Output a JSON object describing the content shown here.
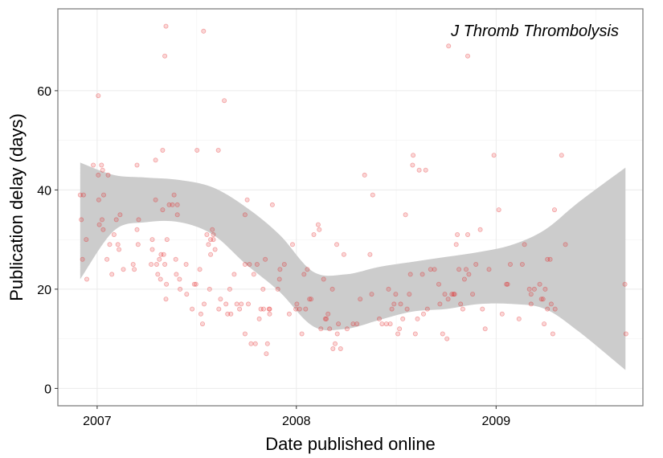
{
  "chart_data": {
    "type": "scatter",
    "title": "J Thromb Thrombolysis",
    "xlabel": "Date published online",
    "ylabel": "Publication delay (days)",
    "x_ticks": [
      "2007",
      "2008",
      "2009"
    ],
    "y_ticks": [
      0,
      20,
      40,
      60
    ],
    "xlim": [
      "2006-10-21",
      "2009-09-27"
    ],
    "ylim": [
      -3.5,
      76.5
    ],
    "grid": true,
    "legend": "none",
    "point_color": "#e31a1c",
    "band_color": "#cccccc",
    "trend": {
      "x": [
        "2006-12-01",
        "2007-02-01",
        "2007-04-01",
        "2007-06-01",
        "2007-08-01",
        "2007-10-01",
        "2007-12-01",
        "2008-02-01",
        "2008-04-01",
        "2008-06-01",
        "2008-08-01",
        "2008-10-01",
        "2008-12-01",
        "2009-02-01",
        "2009-04-01",
        "2009-06-01",
        "2009-08-26"
      ],
      "y": [
        33.8,
        37.8,
        38.0,
        37.4,
        35.3,
        30.0,
        24.6,
        17.8,
        17.6,
        18.5,
        19.7,
        20.5,
        21.1,
        20.8,
        21.6,
        22.9,
        24.1
      ],
      "lower": [
        22.0,
        31.8,
        33.5,
        33.5,
        31.0,
        25.0,
        19.5,
        12.5,
        12.0,
        13.8,
        15.5,
        16.0,
        17.0,
        17.0,
        16.0,
        11.5,
        3.7
      ],
      "upper": [
        45.5,
        43.0,
        42.5,
        42.0,
        40.5,
        36.5,
        31.0,
        23.5,
        23.0,
        24.5,
        25.5,
        26.5,
        27.5,
        29.0,
        32.0,
        37.5,
        44.5
      ]
    },
    "points": [
      [
        "2006-12-01",
        39
      ],
      [
        "2006-12-03",
        34
      ],
      [
        "2006-12-05",
        26
      ],
      [
        "2006-12-07",
        39
      ],
      [
        "2006-12-12",
        30
      ],
      [
        "2006-12-13",
        22
      ],
      [
        "2006-12-25",
        45
      ],
      [
        "2007-01-03",
        59
      ],
      [
        "2007-01-03",
        43
      ],
      [
        "2007-01-04",
        38
      ],
      [
        "2007-01-05",
        33
      ],
      [
        "2007-01-09",
        45
      ],
      [
        "2007-01-11",
        44
      ],
      [
        "2007-01-13",
        39
      ],
      [
        "2007-01-10",
        34
      ],
      [
        "2007-01-12",
        32
      ],
      [
        "2007-01-19",
        26
      ],
      [
        "2007-01-21",
        43
      ],
      [
        "2007-01-24",
        29
      ],
      [
        "2007-01-28",
        23
      ],
      [
        "2007-02-01",
        31
      ],
      [
        "2007-02-05",
        34
      ],
      [
        "2007-02-08",
        29
      ],
      [
        "2007-02-12",
        35
      ],
      [
        "2007-02-10",
        28
      ],
      [
        "2007-02-18",
        24
      ],
      [
        "2007-03-08",
        25
      ],
      [
        "2007-03-10",
        24
      ],
      [
        "2007-03-15",
        45
      ],
      [
        "2007-03-15",
        32
      ],
      [
        "2007-03-18",
        34
      ],
      [
        "2007-03-17",
        29
      ],
      [
        "2007-04-10",
        25
      ],
      [
        "2007-04-12",
        30
      ],
      [
        "2007-04-12",
        28
      ],
      [
        "2007-04-18",
        38
      ],
      [
        "2007-04-18",
        46
      ],
      [
        "2007-04-20",
        25
      ],
      [
        "2007-04-22",
        23
      ],
      [
        "2007-04-25",
        26
      ],
      [
        "2007-04-27",
        22
      ],
      [
        "2007-04-28",
        27
      ],
      [
        "2007-05-01",
        36
      ],
      [
        "2007-05-01",
        48
      ],
      [
        "2007-05-03",
        27
      ],
      [
        "2007-05-05",
        25
      ],
      [
        "2007-05-08",
        21
      ],
      [
        "2007-05-07",
        18
      ],
      [
        "2007-05-05",
        67
      ],
      [
        "2007-05-07",
        73
      ],
      [
        "2007-05-09",
        30
      ],
      [
        "2007-05-13",
        37
      ],
      [
        "2007-05-19",
        37
      ],
      [
        "2007-05-22",
        39
      ],
      [
        "2007-05-25",
        26
      ],
      [
        "2007-05-28",
        35
      ],
      [
        "2007-05-28",
        37
      ],
      [
        "2007-05-26",
        23
      ],
      [
        "2007-06-01",
        22
      ],
      [
        "2007-06-02",
        20
      ],
      [
        "2007-06-13",
        25
      ],
      [
        "2007-06-14",
        19
      ],
      [
        "2007-06-24",
        16
      ],
      [
        "2007-06-28",
        21
      ],
      [
        "2007-07-01",
        21
      ],
      [
        "2007-07-03",
        48
      ],
      [
        "2007-07-08",
        24
      ],
      [
        "2007-07-10",
        15
      ],
      [
        "2007-07-13",
        13
      ],
      [
        "2007-07-15",
        72
      ],
      [
        "2007-07-16",
        17
      ],
      [
        "2007-07-21",
        31
      ],
      [
        "2007-07-24",
        29
      ],
      [
        "2007-07-26",
        20
      ],
      [
        "2007-07-28",
        27
      ],
      [
        "2007-07-28",
        30
      ],
      [
        "2007-07-31",
        32
      ],
      [
        "2007-08-02",
        30
      ],
      [
        "2007-08-02",
        31
      ],
      [
        "2007-08-05",
        28
      ],
      [
        "2007-08-11",
        48
      ],
      [
        "2007-08-12",
        16
      ],
      [
        "2007-08-15",
        18
      ],
      [
        "2007-08-22",
        58
      ],
      [
        "2007-08-25",
        17
      ],
      [
        "2007-08-28",
        15
      ],
      [
        "2007-09-01",
        20
      ],
      [
        "2007-09-03",
        15
      ],
      [
        "2007-09-09",
        23
      ],
      [
        "2007-09-14",
        17
      ],
      [
        "2007-09-19",
        16
      ],
      [
        "2007-09-22",
        17
      ],
      [
        "2007-09-29",
        25
      ],
      [
        "2007-09-29",
        11
      ],
      [
        "2007-09-29",
        35
      ],
      [
        "2007-10-03",
        38
      ],
      [
        "2007-10-05",
        17
      ],
      [
        "2007-10-07",
        25
      ],
      [
        "2007-10-10",
        9
      ],
      [
        "2007-10-15",
        23
      ],
      [
        "2007-10-18",
        9
      ],
      [
        "2007-10-21",
        25
      ],
      [
        "2007-10-25",
        14
      ],
      [
        "2007-10-28",
        16
      ],
      [
        "2007-11-01",
        20
      ],
      [
        "2007-11-02",
        16
      ],
      [
        "2007-11-05",
        26
      ],
      [
        "2007-11-07",
        7
      ],
      [
        "2007-11-09",
        9
      ],
      [
        "2007-11-12",
        16
      ],
      [
        "2007-11-13",
        16
      ],
      [
        "2007-11-13",
        15
      ],
      [
        "2007-11-18",
        37
      ],
      [
        "2007-11-28",
        20
      ],
      [
        "2007-12-01",
        22
      ],
      [
        "2007-12-02",
        24
      ],
      [
        "2007-12-10",
        25
      ],
      [
        "2007-12-19",
        15
      ],
      [
        "2007-12-25",
        29
      ],
      [
        "2007-12-31",
        16
      ],
      [
        "2008-01-02",
        17
      ],
      [
        "2008-01-07",
        16
      ],
      [
        "2008-01-11",
        11
      ],
      [
        "2008-01-15",
        23
      ],
      [
        "2008-01-18",
        16
      ],
      [
        "2008-01-21",
        24
      ],
      [
        "2008-01-25",
        18
      ],
      [
        "2008-01-28",
        18
      ],
      [
        "2008-02-02",
        31
      ],
      [
        "2008-02-10",
        33
      ],
      [
        "2008-02-12",
        32
      ],
      [
        "2008-02-15",
        12
      ],
      [
        "2008-02-20",
        22
      ],
      [
        "2008-02-23",
        14
      ],
      [
        "2008-02-25",
        14
      ],
      [
        "2008-02-28",
        15
      ],
      [
        "2008-03-02",
        12
      ],
      [
        "2008-03-07",
        20
      ],
      [
        "2008-03-08",
        8
      ],
      [
        "2008-03-12",
        9
      ],
      [
        "2008-03-15",
        29
      ],
      [
        "2008-03-16",
        11
      ],
      [
        "2008-03-18",
        13
      ],
      [
        "2008-03-22",
        8
      ],
      [
        "2008-03-28",
        27
      ],
      [
        "2008-04-03",
        12
      ],
      [
        "2008-04-14",
        13
      ],
      [
        "2008-04-21",
        13
      ],
      [
        "2008-04-27",
        18
      ],
      [
        "2008-05-05",
        43
      ],
      [
        "2008-05-15",
        27
      ],
      [
        "2008-05-18",
        19
      ],
      [
        "2008-05-20",
        39
      ],
      [
        "2008-06-01",
        14
      ],
      [
        "2008-06-06",
        13
      ],
      [
        "2008-06-14",
        13
      ],
      [
        "2008-06-18",
        20
      ],
      [
        "2008-06-21",
        13
      ],
      [
        "2008-06-24",
        16
      ],
      [
        "2008-06-28",
        17
      ],
      [
        "2008-07-01",
        19
      ],
      [
        "2008-07-05",
        11
      ],
      [
        "2008-07-08",
        12
      ],
      [
        "2008-07-10",
        17
      ],
      [
        "2008-07-14",
        14
      ],
      [
        "2008-07-19",
        35
      ],
      [
        "2008-07-22",
        16
      ],
      [
        "2008-07-26",
        19
      ],
      [
        "2008-07-28",
        23
      ],
      [
        "2008-08-01",
        45
      ],
      [
        "2008-08-02",
        47
      ],
      [
        "2008-08-06",
        11
      ],
      [
        "2008-08-10",
        14
      ],
      [
        "2008-08-13",
        44
      ],
      [
        "2008-08-19",
        23
      ],
      [
        "2008-08-21",
        15
      ],
      [
        "2008-08-25",
        44
      ],
      [
        "2008-08-28",
        16
      ],
      [
        "2008-09-03",
        24
      ],
      [
        "2008-09-10",
        24
      ],
      [
        "2008-09-18",
        21
      ],
      [
        "2008-09-20",
        17
      ],
      [
        "2008-09-25",
        11
      ],
      [
        "2008-09-29",
        19
      ],
      [
        "2008-10-03",
        10
      ],
      [
        "2008-10-05",
        18
      ],
      [
        "2008-10-06",
        69
      ],
      [
        "2008-10-12",
        19
      ],
      [
        "2008-10-15",
        19
      ],
      [
        "2008-10-17",
        19
      ],
      [
        "2008-10-20",
        29
      ],
      [
        "2008-10-22",
        31
      ],
      [
        "2008-10-25",
        24
      ],
      [
        "2008-10-28",
        17
      ],
      [
        "2008-11-01",
        16
      ],
      [
        "2008-11-04",
        22
      ],
      [
        "2008-11-07",
        24
      ],
      [
        "2008-11-10",
        31
      ],
      [
        "2008-11-10",
        67
      ],
      [
        "2008-11-12",
        23
      ],
      [
        "2008-11-19",
        19
      ],
      [
        "2008-11-25",
        25
      ],
      [
        "2008-12-03",
        32
      ],
      [
        "2008-12-07",
        16
      ],
      [
        "2008-12-12",
        12
      ],
      [
        "2008-12-19",
        24
      ],
      [
        "2008-12-28",
        47
      ],
      [
        "2009-01-06",
        36
      ],
      [
        "2009-01-12",
        15
      ],
      [
        "2009-01-20",
        21
      ],
      [
        "2009-01-22",
        21
      ],
      [
        "2009-01-27",
        25
      ],
      [
        "2009-02-12",
        14
      ],
      [
        "2009-02-18",
        25
      ],
      [
        "2009-02-22",
        29
      ],
      [
        "2009-03-03",
        20
      ],
      [
        "2009-03-06",
        17
      ],
      [
        "2009-03-06",
        19
      ],
      [
        "2009-03-12",
        20
      ],
      [
        "2009-03-22",
        21
      ],
      [
        "2009-03-25",
        18
      ],
      [
        "2009-03-28",
        18
      ],
      [
        "2009-03-30",
        13
      ],
      [
        "2009-04-01",
        20
      ],
      [
        "2009-04-05",
        26
      ],
      [
        "2009-04-05",
        16
      ],
      [
        "2009-04-10",
        26
      ],
      [
        "2009-04-12",
        17
      ],
      [
        "2009-04-15",
        11
      ],
      [
        "2009-04-18",
        36
      ],
      [
        "2009-04-19",
        16
      ],
      [
        "2009-05-01",
        47
      ],
      [
        "2009-05-08",
        29
      ],
      [
        "2009-08-25",
        21
      ],
      [
        "2009-08-27",
        11
      ]
    ]
  }
}
